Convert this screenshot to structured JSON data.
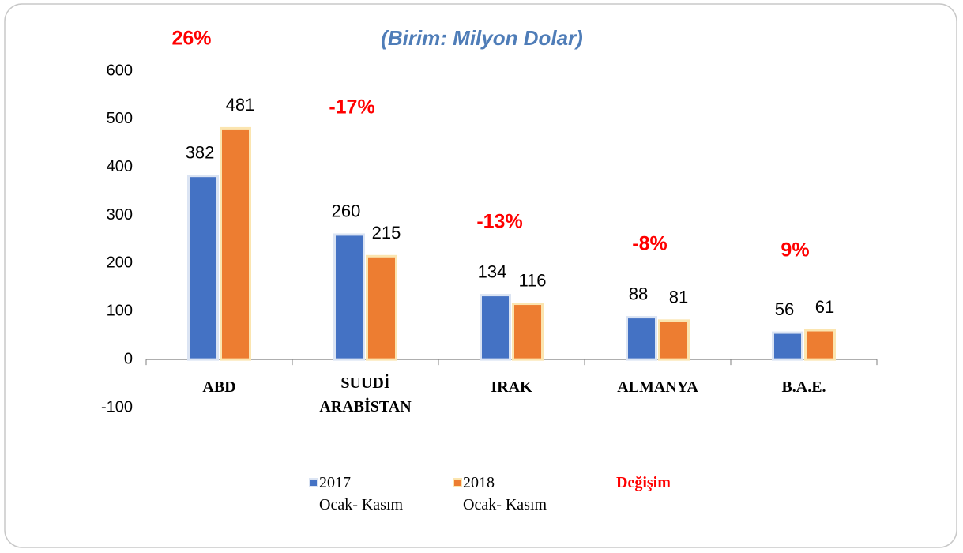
{
  "chart_data": {
    "type": "bar",
    "title": "(Birim: Milyon Dolar)",
    "categories": [
      "ABD",
      "SUUDİ\nARABİSTAN",
      "IRAK",
      "ALMANYA",
      "B.A.E."
    ],
    "series": [
      {
        "name": "2017\nOcak- Kasım",
        "color": "#4472c4",
        "values": [
          382,
          260,
          134,
          88,
          56
        ]
      },
      {
        "name": "2018\nOcak- Kasım",
        "color": "#ed7d31",
        "values": [
          481,
          215,
          116,
          81,
          61
        ]
      }
    ],
    "annotations": [
      "26%",
      "-17%",
      "-13%",
      "-8%",
      "9%"
    ],
    "annotation_legend": "Değişim",
    "annotation_color": "#ff0000",
    "ylim": [
      -100,
      600
    ],
    "yticks": [
      -100,
      0,
      100,
      200,
      300,
      400,
      500,
      600
    ],
    "grid": false
  }
}
